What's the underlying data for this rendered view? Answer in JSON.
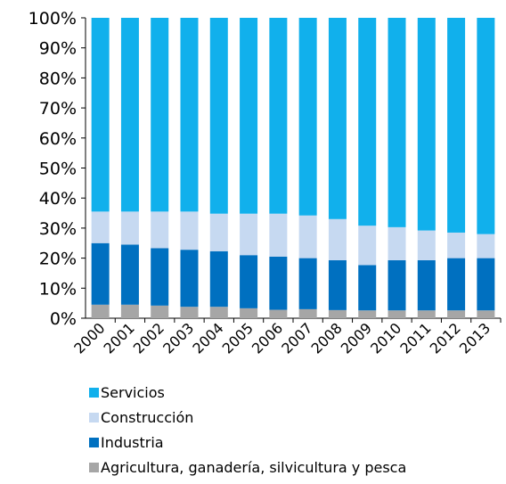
{
  "chart_data": {
    "type": "stacked-bar",
    "categories": [
      "2000",
      "2001",
      "2002",
      "2003",
      "2004",
      "2005",
      "2006",
      "2007",
      "2008",
      "2009",
      "2010",
      "2011",
      "2012",
      "2013"
    ],
    "series": [
      {
        "name": "Agricultura, ganadería,  silvicultura  y pesca",
        "color": "#a6a6a6",
        "values": [
          4.5,
          4.5,
          4.2,
          3.8,
          3.8,
          3.3,
          2.8,
          3,
          2.7,
          2.6,
          2.6,
          2.6,
          2.6,
          2.6
        ]
      },
      {
        "name": "Industria",
        "color": "#0070c0",
        "values": [
          20.5,
          20,
          19.1,
          19,
          18.5,
          17.7,
          17.7,
          17,
          16.6,
          15.1,
          16.7,
          16.7,
          17.4,
          17.4
        ]
      },
      {
        "name": "Construcción",
        "color": "#c6d9f1",
        "values": [
          10.5,
          11,
          12.2,
          12.7,
          12.5,
          13.8,
          14.3,
          14.2,
          13.7,
          13.1,
          11,
          9.9,
          8.5,
          8
        ]
      },
      {
        "name": "Servicios",
        "color": "#11b0ec",
        "values": [
          64.5,
          64.5,
          64.5,
          64.5,
          65.2,
          65.2,
          65.2,
          65.8,
          67,
          69.2,
          69.7,
          70.8,
          71.5,
          72
        ]
      }
    ],
    "ylim": [
      0,
      100
    ],
    "yticks": [
      {
        "value": 0,
        "label": "0%"
      },
      {
        "value": 10,
        "label": "10%"
      },
      {
        "value": 20,
        "label": "20%"
      },
      {
        "value": 30,
        "label": "30%"
      },
      {
        "value": 40,
        "label": "40%"
      },
      {
        "value": 50,
        "label": "50%"
      },
      {
        "value": 60,
        "label": "60%"
      },
      {
        "value": 70,
        "label": "70%"
      },
      {
        "value": 80,
        "label": "80%"
      },
      {
        "value": 90,
        "label": "90%"
      },
      {
        "value": 100,
        "label": "100%"
      }
    ],
    "legend": "bottom"
  }
}
